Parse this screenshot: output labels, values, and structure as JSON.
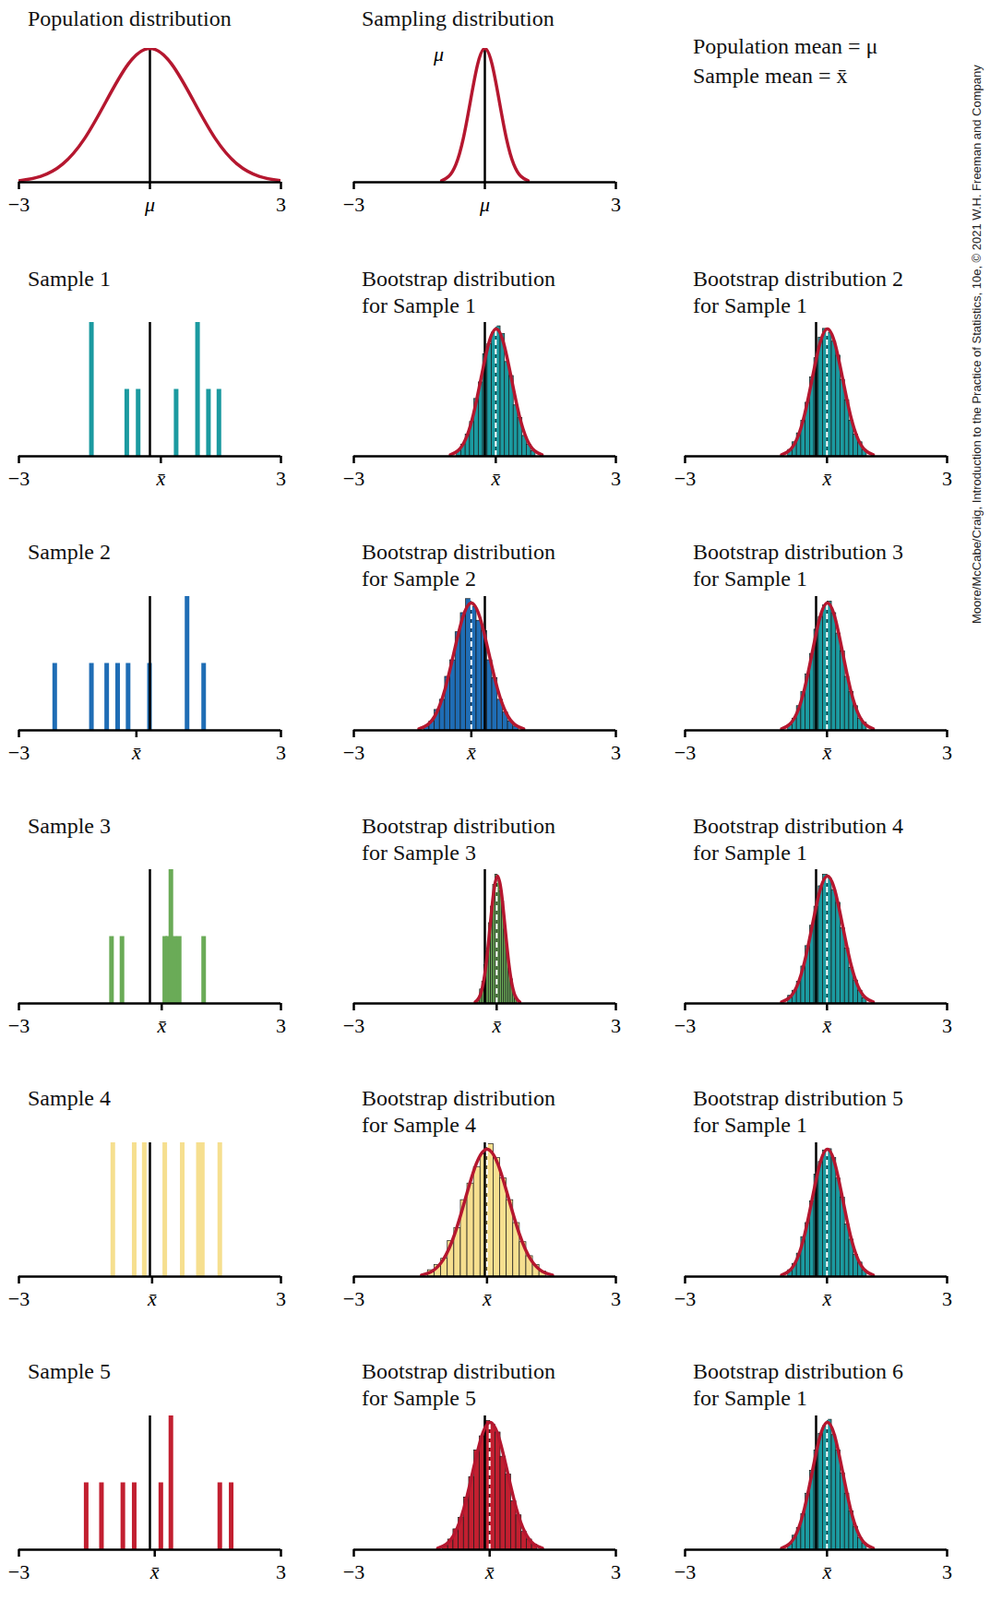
{
  "chart_data": [
    {
      "type": "line",
      "title": "Population distribution",
      "x": [
        -3,
        -2.5,
        -2,
        -1.5,
        -1,
        -0.5,
        0,
        0.5,
        1,
        1.5,
        2,
        2.5,
        3
      ],
      "values": [
        1.1,
        4.4,
        13.5,
        32.5,
        60.7,
        88.2,
        100,
        88.2,
        60.7,
        32.5,
        13.5,
        4.4,
        1.1
      ],
      "color": "#b5172f",
      "mu": 0,
      "xlim": [
        -3,
        3
      ],
      "ylim": [
        0,
        100
      ],
      "xticks": [
        -3,
        {
          "value": 0,
          "label": "μ"
        },
        3
      ],
      "tick_labels": "x"
    },
    {
      "type": "line",
      "title": "Sampling distribution",
      "x": [
        -0.99,
        -0.825,
        -0.66,
        -0.495,
        -0.33,
        -0.165,
        0,
        0.165,
        0.33,
        0.495,
        0.66,
        0.825,
        0.99
      ],
      "values": [
        1.1,
        4.4,
        13.5,
        32.5,
        60.7,
        88.2,
        100,
        88.2,
        60.7,
        32.5,
        13.5,
        4.4,
        1.1
      ],
      "color": "#b5172f",
      "mu": 0,
      "annotation": "μ",
      "xlim": [
        -3,
        3
      ],
      "ylim": [
        0,
        100
      ],
      "xticks": [
        -3,
        {
          "value": 0,
          "label": "μ"
        },
        3
      ],
      "tick_labels": "x"
    },
    {
      "type": "spike",
      "title": "Sample 1",
      "x": [
        -1.34,
        -0.53,
        -0.27,
        0.6,
        1.09,
        1.34,
        1.58
      ],
      "counts": [
        2,
        1,
        1,
        1,
        2,
        1,
        1
      ],
      "color": "#1b9aa0",
      "mu": 0,
      "xlim": [
        -3,
        3
      ],
      "ylim": [
        0,
        2
      ],
      "xticks": [
        -3,
        {
          "value": 0.25,
          "label": "x̄"
        },
        3
      ],
      "tick_labels": "x"
    },
    {
      "type": "histogram",
      "title": "Bootstrap distribution\nfor Sample 1",
      "bins": [
        -0.64,
        -0.54,
        -0.44,
        -0.34,
        -0.24,
        -0.14,
        -0.04,
        0.06,
        0.16,
        0.26,
        0.36,
        0.46,
        0.56,
        0.66,
        0.76,
        0.86,
        0.96,
        1.06,
        1.16
      ],
      "counts": [
        4,
        9,
        17,
        27,
        45,
        58,
        80,
        88,
        97,
        102,
        96,
        74,
        63,
        40,
        30,
        16,
        9,
        4
      ],
      "color": "#1b9aa0",
      "curve": {
        "x": [
          -0.79,
          -0.615,
          -0.44,
          -0.265,
          -0.09,
          0.085,
          0.26,
          0.435,
          0.61,
          0.785,
          0.96,
          1.135,
          1.31
        ],
        "y": [
          1.1,
          4.4,
          13.5,
          32.5,
          60.7,
          88.2,
          100,
          88.2,
          60.7,
          32.5,
          13.5,
          4.4,
          1.1
        ],
        "color": "#b5172f"
      },
      "mu": 0,
      "xbar": 0.25,
      "xlim": [
        -3,
        3
      ],
      "ylim": [
        0,
        105
      ],
      "xticks": [
        -3,
        {
          "value": 0.25,
          "label": "x̄"
        },
        3
      ],
      "tick_labels": "x"
    },
    {
      "type": "histogram",
      "title": "Bootstrap distribution 2\nfor Sample 1",
      "bins": [
        -0.64,
        -0.54,
        -0.44,
        -0.34,
        -0.24,
        -0.14,
        -0.04,
        0.06,
        0.16,
        0.26,
        0.36,
        0.46,
        0.56,
        0.66,
        0.76,
        0.86,
        0.96,
        1.06,
        1.16
      ],
      "counts": [
        5,
        11,
        18,
        28,
        42,
        62,
        77,
        93,
        100,
        97,
        90,
        79,
        60,
        44,
        28,
        17,
        11,
        5
      ],
      "color": "#1b9aa0",
      "curve": {
        "x": [
          -0.79,
          -0.615,
          -0.44,
          -0.265,
          -0.09,
          0.085,
          0.26,
          0.435,
          0.61,
          0.785,
          0.96,
          1.135,
          1.31
        ],
        "y": [
          1.1,
          4.4,
          13.5,
          32.5,
          60.7,
          88.2,
          100,
          88.2,
          60.7,
          32.5,
          13.5,
          4.4,
          1.1
        ],
        "color": "#b5172f"
      },
      "mu": 0,
      "xbar": 0.25,
      "xlim": [
        -3,
        3
      ],
      "ylim": [
        0,
        105
      ],
      "xticks": [
        -3,
        {
          "value": 0.25,
          "label": "x̄"
        },
        3
      ],
      "tick_labels": "x"
    },
    {
      "type": "spike",
      "title": "Sample 2",
      "x": [
        -2.18,
        -1.34,
        -0.99,
        -0.74,
        -0.5,
        -0.01,
        0.85,
        1.23
      ],
      "counts": [
        1,
        1,
        1,
        1,
        1,
        1,
        2,
        1
      ],
      "color": "#1f6db5",
      "mu": 0,
      "xlim": [
        -3,
        3
      ],
      "ylim": [
        0,
        2
      ],
      "xticks": [
        -3,
        {
          "value": -0.31,
          "label": "x̄"
        },
        3
      ],
      "tick_labels": "x"
    },
    {
      "type": "histogram",
      "title": "Bootstrap distribution\nfor Sample 2",
      "bins": [
        -1.39,
        -1.27,
        -1.15,
        -1.03,
        -0.91,
        -0.79,
        -0.67,
        -0.55,
        -0.43,
        -0.31,
        -0.19,
        -0.07,
        0.05,
        0.17,
        0.29,
        0.41,
        0.53,
        0.65,
        0.77
      ],
      "counts": [
        3,
        7,
        16,
        24,
        42,
        55,
        77,
        92,
        103,
        97,
        86,
        78,
        55,
        41,
        24,
        14,
        7,
        3
      ],
      "color": "#1f6db5",
      "curve": {
        "x": [
          -1.51,
          -1.31,
          -1.11,
          -0.91,
          -0.71,
          -0.51,
          -0.31,
          -0.11,
          0.09,
          0.29,
          0.49,
          0.69,
          0.89
        ],
        "y": [
          1.1,
          4.4,
          13.5,
          32.5,
          60.7,
          88.2,
          100,
          88.2,
          60.7,
          32.5,
          13.5,
          4.4,
          1.1
        ],
        "color": "#b5172f"
      },
      "mu": 0,
      "xbar": -0.31,
      "xlim": [
        -3,
        3
      ],
      "ylim": [
        0,
        105
      ],
      "xticks": [
        -3,
        {
          "value": -0.31,
          "label": "x̄"
        },
        3
      ],
      "tick_labels": "x"
    },
    {
      "type": "histogram",
      "title": "Bootstrap distribution 3\nfor Sample 1",
      "bins": [
        -0.64,
        -0.54,
        -0.44,
        -0.34,
        -0.24,
        -0.14,
        -0.04,
        0.06,
        0.16,
        0.26,
        0.36,
        0.46,
        0.56,
        0.66,
        0.76,
        0.86,
        0.96,
        1.06,
        1.16
      ],
      "counts": [
        4,
        9,
        19,
        30,
        44,
        60,
        79,
        89,
        98,
        101,
        92,
        76,
        62,
        42,
        30,
        19,
        9,
        6
      ],
      "color": "#1b9aa0",
      "curve": {
        "x": [
          -0.79,
          -0.615,
          -0.44,
          -0.265,
          -0.09,
          0.085,
          0.26,
          0.435,
          0.61,
          0.785,
          0.96,
          1.135,
          1.31
        ],
        "y": [
          1.1,
          4.4,
          13.5,
          32.5,
          60.7,
          88.2,
          100,
          88.2,
          60.7,
          32.5,
          13.5,
          4.4,
          1.1
        ],
        "color": "#b5172f"
      },
      "mu": 0,
      "xbar": 0.25,
      "xlim": [
        -3,
        3
      ],
      "ylim": [
        0,
        105
      ],
      "xticks": [
        -3,
        {
          "value": 0.25,
          "label": "x̄"
        },
        3
      ],
      "tick_labels": "x"
    },
    {
      "type": "spike",
      "title": "Sample 3",
      "x": [
        -0.88,
        -0.64,
        0.34,
        0.41,
        0.48,
        0.57,
        0.67,
        1.23
      ],
      "counts": [
        1,
        1,
        1,
        1,
        2,
        1,
        1,
        1
      ],
      "color": "#6aab57",
      "mu": 0,
      "xlim": [
        -3,
        3
      ],
      "ylim": [
        0,
        2
      ],
      "xticks": [
        -3,
        {
          "value": 0.27,
          "label": "x̄"
        },
        3
      ],
      "tick_labels": "x"
    },
    {
      "type": "histogram",
      "title": "Bootstrap distribution\nfor Sample 3",
      "bins": [
        -0.16,
        -0.11,
        -0.06,
        -0.01,
        0.04,
        0.09,
        0.14,
        0.19,
        0.24,
        0.29,
        0.34,
        0.39,
        0.44,
        0.49,
        0.54,
        0.59,
        0.64,
        0.69,
        0.74
      ],
      "counts": [
        4,
        11,
        17,
        30,
        41,
        63,
        76,
        93,
        101,
        96,
        88,
        80,
        58,
        45,
        27,
        19,
        9,
        5
      ],
      "color": "#6aab57",
      "curve": {
        "x": [
          -0.22,
          -0.135,
          -0.05,
          0.035,
          0.12,
          0.205,
          0.29,
          0.375,
          0.46,
          0.545,
          0.63,
          0.715,
          0.8
        ],
        "y": [
          1.1,
          4.4,
          13.5,
          32.5,
          60.7,
          88.2,
          100,
          88.2,
          60.7,
          32.5,
          13.5,
          4.4,
          1.1
        ],
        "color": "#b5172f"
      },
      "mu": 0,
      "xbar": 0.27,
      "xlim": [
        -3,
        3
      ],
      "ylim": [
        0,
        105
      ],
      "xticks": [
        -3,
        {
          "value": 0.27,
          "label": "x̄"
        },
        3
      ],
      "tick_labels": "x"
    },
    {
      "type": "histogram",
      "title": "Bootstrap distribution 4\nfor Sample 1",
      "bins": [
        -0.64,
        -0.54,
        -0.44,
        -0.34,
        -0.24,
        -0.14,
        -0.04,
        0.06,
        0.16,
        0.26,
        0.36,
        0.46,
        0.56,
        0.66,
        0.76,
        0.86,
        0.96,
        1.06,
        1.16
      ],
      "counts": [
        6,
        10,
        17,
        29,
        45,
        61,
        76,
        92,
        101,
        98,
        89,
        79,
        59,
        43,
        28,
        18,
        10,
        4
      ],
      "color": "#1b9aa0",
      "curve": {
        "x": [
          -0.79,
          -0.615,
          -0.44,
          -0.265,
          -0.09,
          0.085,
          0.26,
          0.435,
          0.61,
          0.785,
          0.96,
          1.135,
          1.31
        ],
        "y": [
          1.1,
          4.4,
          13.5,
          32.5,
          60.7,
          88.2,
          100,
          88.2,
          60.7,
          32.5,
          13.5,
          4.4,
          1.1
        ],
        "color": "#b5172f"
      },
      "mu": 0,
      "xbar": 0.25,
      "xlim": [
        -3,
        3
      ],
      "ylim": [
        0,
        105
      ],
      "xticks": [
        -3,
        {
          "value": 0.25,
          "label": "x̄"
        },
        3
      ],
      "tick_labels": "x"
    },
    {
      "type": "spike",
      "title": "Sample 4",
      "x": [
        -0.85,
        -0.36,
        -0.13,
        0.34,
        0.74,
        1.11,
        1.2,
        1.6
      ],
      "counts": [
        2,
        2,
        2,
        2,
        2,
        2,
        2,
        2
      ],
      "color": "#f6df8f",
      "mu": 0,
      "xlim": [
        -3,
        3
      ],
      "ylim": [
        0,
        2
      ],
      "xticks": [
        -3,
        {
          "value": 0.05,
          "label": "x̄"
        },
        3
      ],
      "tick_labels": "x"
    },
    {
      "type": "histogram",
      "title": "Bootstrap distribution\nfor Sample 4",
      "bins": [
        -1.3,
        -1.15,
        -1.0,
        -0.85,
        -0.7,
        -0.55,
        -0.4,
        -0.25,
        -0.1,
        0.05,
        0.2,
        0.35,
        0.5,
        0.65,
        0.8,
        0.95,
        1.1,
        1.25,
        1.4
      ],
      "counts": [
        5,
        9,
        14,
        28,
        38,
        60,
        73,
        86,
        96,
        104,
        93,
        77,
        60,
        42,
        27,
        16,
        9,
        4
      ],
      "color": "#f6df8f",
      "curve": {
        "x": [
          -1.45,
          -1.2,
          -0.95,
          -0.7,
          -0.45,
          -0.2,
          0.05,
          0.3,
          0.55,
          0.8,
          1.05,
          1.3,
          1.55
        ],
        "y": [
          1.1,
          4.4,
          13.5,
          32.5,
          60.7,
          88.2,
          100,
          88.2,
          60.7,
          32.5,
          13.5,
          4.4,
          1.1
        ],
        "color": "#b5172f"
      },
      "mu": 0,
      "xbar": 0.05,
      "xlim": [
        -3,
        3
      ],
      "ylim": [
        0,
        105
      ],
      "xticks": [
        -3,
        {
          "value": 0.05,
          "label": "x̄"
        },
        3
      ],
      "tick_labels": "x"
    },
    {
      "type": "histogram",
      "title": "Bootstrap distribution 5\nfor Sample 1",
      "bins": [
        -0.64,
        -0.54,
        -0.44,
        -0.34,
        -0.24,
        -0.14,
        -0.04,
        0.06,
        0.16,
        0.26,
        0.36,
        0.46,
        0.56,
        0.66,
        0.76,
        0.86,
        0.96,
        1.06,
        1.16
      ],
      "counts": [
        5,
        10,
        18,
        31,
        42,
        59,
        80,
        90,
        99,
        100,
        93,
        77,
        62,
        41,
        29,
        17,
        11,
        5
      ],
      "color": "#1b9aa0",
      "curve": {
        "x": [
          -0.79,
          -0.615,
          -0.44,
          -0.265,
          -0.09,
          0.085,
          0.26,
          0.435,
          0.61,
          0.785,
          0.96,
          1.135,
          1.31
        ],
        "y": [
          1.1,
          4.4,
          13.5,
          32.5,
          60.7,
          88.2,
          100,
          88.2,
          60.7,
          32.5,
          13.5,
          4.4,
          1.1
        ],
        "color": "#b5172f"
      },
      "mu": 0,
      "xbar": 0.25,
      "xlim": [
        -3,
        3
      ],
      "ylim": [
        0,
        105
      ],
      "xticks": [
        -3,
        {
          "value": 0.25,
          "label": "x̄"
        },
        3
      ],
      "tick_labels": "x"
    },
    {
      "type": "spike",
      "title": "Sample 5",
      "x": [
        -1.46,
        -1.11,
        -0.62,
        -0.36,
        0.25,
        0.48,
        1.6,
        1.86
      ],
      "counts": [
        1,
        1,
        1,
        1,
        1,
        2,
        1,
        1
      ],
      "color": "#c21f30",
      "mu": 0,
      "xlim": [
        -3,
        3
      ],
      "ylim": [
        0,
        2
      ],
      "xticks": [
        -3,
        {
          "value": 0.11,
          "label": "x̄"
        },
        3
      ],
      "tick_labels": "x"
    },
    {
      "type": "histogram",
      "title": "Bootstrap distribution\nfor Sample 5",
      "bins": [
        -0.96,
        -0.84,
        -0.72,
        -0.6,
        -0.48,
        -0.36,
        -0.24,
        -0.12,
        0,
        0.12,
        0.24,
        0.36,
        0.48,
        0.6,
        0.72,
        0.84,
        0.96,
        1.08,
        1.2
      ],
      "counts": [
        3,
        8,
        16,
        25,
        41,
        57,
        78,
        89,
        101,
        98,
        92,
        73,
        59,
        38,
        27,
        14,
        8,
        4
      ],
      "color": "#c21f30",
      "curve": {
        "x": [
          -1.08,
          -0.88,
          -0.68,
          -0.48,
          -0.28,
          -0.08,
          0.12,
          0.32,
          0.52,
          0.72,
          0.92,
          1.12,
          1.32
        ],
        "y": [
          1.1,
          4.4,
          13.5,
          32.5,
          60.7,
          88.2,
          100,
          88.2,
          60.7,
          32.5,
          13.5,
          4.4,
          1.1
        ],
        "color": "#b5172f"
      },
      "mu": 0,
      "xbar": 0.11,
      "xlim": [
        -3,
        3
      ],
      "ylim": [
        0,
        105
      ],
      "xticks": [
        -3,
        {
          "value": 0.11,
          "label": "x̄"
        },
        3
      ],
      "tick_labels": "x"
    },
    {
      "type": "histogram",
      "title": "Bootstrap distribution 6\nfor Sample 1",
      "bins": [
        -0.64,
        -0.54,
        -0.44,
        -0.34,
        -0.24,
        -0.14,
        -0.04,
        0.06,
        0.16,
        0.26,
        0.36,
        0.46,
        0.56,
        0.66,
        0.76,
        0.86,
        0.96,
        1.06,
        1.16
      ],
      "counts": [
        4,
        11,
        17,
        28,
        44,
        62,
        78,
        91,
        97,
        102,
        90,
        78,
        60,
        44,
        30,
        18,
        9,
        5
      ],
      "color": "#1b9aa0",
      "curve": {
        "x": [
          -0.79,
          -0.615,
          -0.44,
          -0.265,
          -0.09,
          0.085,
          0.26,
          0.435,
          0.61,
          0.785,
          0.96,
          1.135,
          1.31
        ],
        "y": [
          1.1,
          4.4,
          13.5,
          32.5,
          60.7,
          88.2,
          100,
          88.2,
          60.7,
          32.5,
          13.5,
          4.4,
          1.1
        ],
        "color": "#b5172f"
      },
      "mu": 0,
      "xbar": 0.25,
      "xlim": [
        -3,
        3
      ],
      "ylim": [
        0,
        105
      ],
      "xticks": [
        -3,
        {
          "value": 0.25,
          "label": "x̄"
        },
        3
      ],
      "tick_labels": "x"
    }
  ],
  "key": [
    "Population mean = μ",
    "Sample mean = x̄"
  ],
  "credit": "Moore/McCabe/Craig, Introduction to the Practice of Statistics, 10e, © 2021 W.H. Freeman and Company"
}
